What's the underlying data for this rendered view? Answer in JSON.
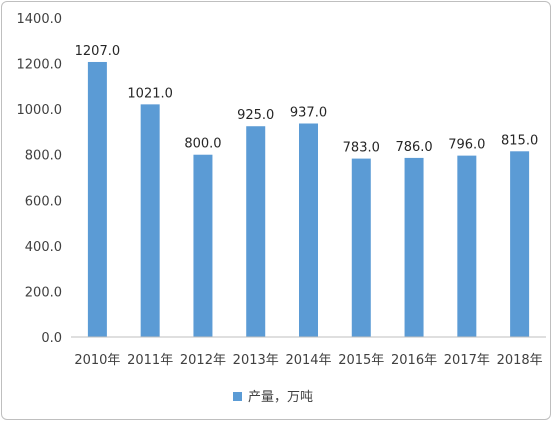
{
  "chart_data": {
    "type": "bar",
    "categories": [
      "2010年",
      "2011年",
      "2012年",
      "2013年",
      "2014年",
      "2015年",
      "2016年",
      "2017年",
      "2018年"
    ],
    "series": [
      {
        "name": "产量，万吨",
        "values": [
          1207.0,
          1021.0,
          800.0,
          925.0,
          937.0,
          783.0,
          786.0,
          796.0,
          815.0
        ],
        "color": "#5b9bd5"
      }
    ],
    "data_labels": [
      "1207.0",
      "1021.0",
      "800.0",
      "925.0",
      "937.0",
      "783.0",
      "786.0",
      "796.0",
      "815.0"
    ],
    "y_ticks": [
      "0.0",
      "200.0",
      "400.0",
      "600.0",
      "800.0",
      "1000.0",
      "1200.0",
      "1400.0"
    ],
    "ylim": [
      0,
      1400
    ],
    "grid": false,
    "legend": {
      "position": "bottom",
      "label": "产量，万吨"
    }
  }
}
